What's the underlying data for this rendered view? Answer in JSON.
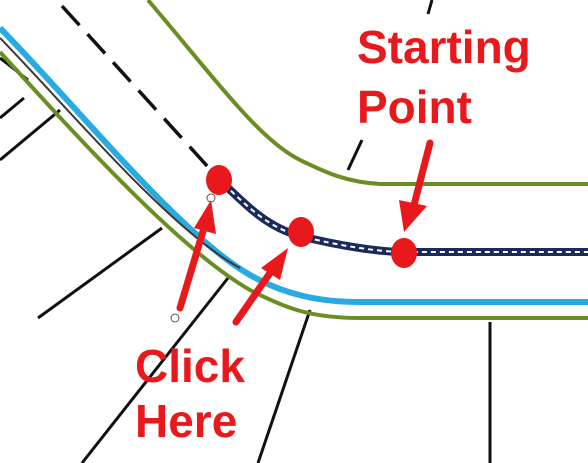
{
  "labels": {
    "starting_point_line1": "Starting",
    "starting_point_line2": "Point",
    "click_here_line1": "Click",
    "click_here_line2": "Here"
  },
  "colors": {
    "road_edge": "#6b8e23",
    "curb": "#29abe2",
    "annotation": "#e8191c",
    "lot_line": "#111111",
    "selected_path": "#1a2a5a"
  },
  "icons": [
    "arrow-icon",
    "point-marker-icon"
  ]
}
